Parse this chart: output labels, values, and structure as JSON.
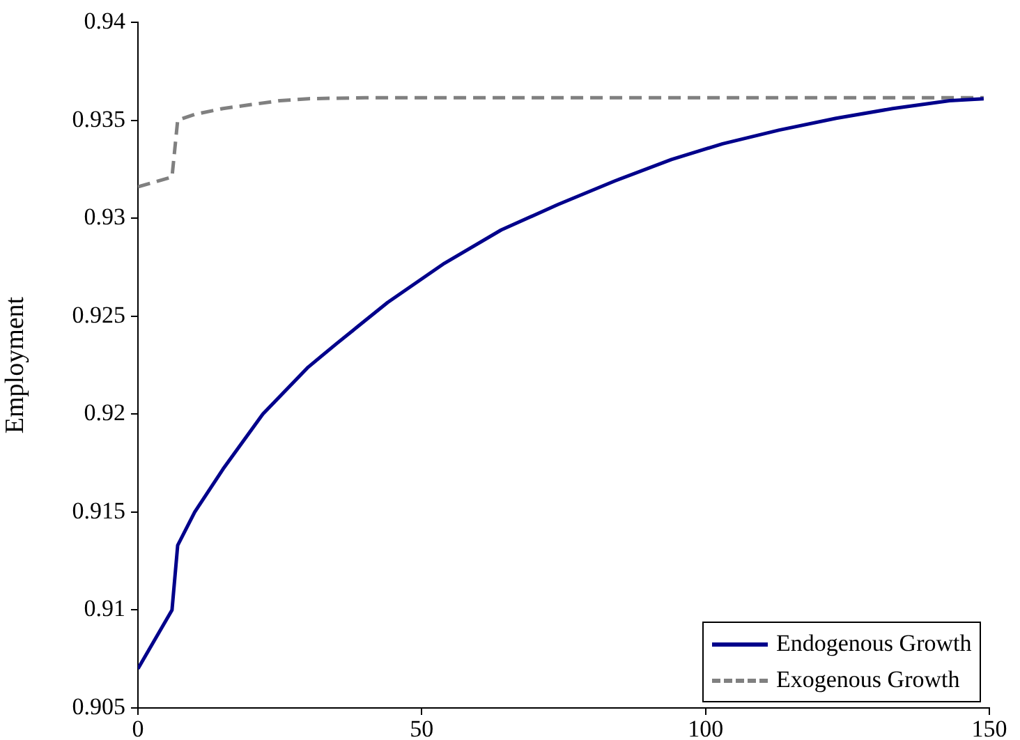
{
  "chart_data": {
    "type": "line",
    "ylabel": "Employment",
    "xlim": [
      0,
      150
    ],
    "xticks": [
      0,
      50,
      100,
      150
    ],
    "ylim": [
      0.905,
      0.94
    ],
    "yticks": [
      0.905,
      0.91,
      0.915,
      0.92,
      0.925,
      0.93,
      0.935,
      0.94
    ],
    "grid": false,
    "legend": "bottom right",
    "marker": "none",
    "series": [
      {
        "name": "Endogenous Growth",
        "color": "#00008b",
        "line_style": "solid",
        "x": [
          0,
          6,
          7,
          10,
          15,
          22,
          30,
          35,
          44,
          54,
          64,
          74,
          84,
          94,
          103,
          113,
          123,
          133,
          143,
          149
        ],
        "values": [
          0.907,
          0.91,
          0.9133,
          0.915,
          0.9172,
          0.92,
          0.9224,
          0.9236,
          0.9257,
          0.9277,
          0.9294,
          0.9307,
          0.9319,
          0.933,
          0.9338,
          0.9345,
          0.9351,
          0.9356,
          0.936,
          0.9361
        ]
      },
      {
        "name": "Exogenous Growth",
        "color": "#808080",
        "line_style": "dashed",
        "x": [
          0,
          6,
          7,
          10,
          15,
          20,
          25,
          30,
          40,
          60,
          100,
          149
        ],
        "values": [
          0.9316,
          0.9321,
          0.935,
          0.9353,
          0.9356,
          0.9358,
          0.936,
          0.9361,
          0.93615,
          0.93615,
          0.93615,
          0.93615
        ]
      }
    ]
  }
}
